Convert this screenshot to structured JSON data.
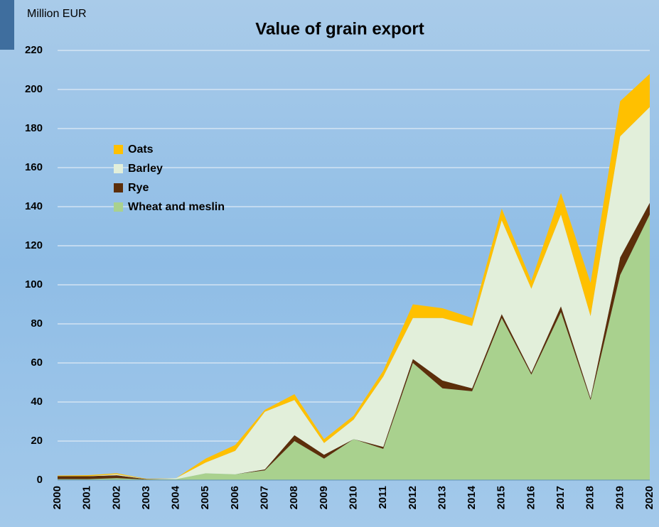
{
  "chart_data": {
    "type": "stacked-area",
    "title": "Value of grain export",
    "y_label": "Million EUR",
    "categories": [
      "2000",
      "2001",
      "2002",
      "2003",
      "2004",
      "2005",
      "2006",
      "2007",
      "2008",
      "2009",
      "2010",
      "2011",
      "2012",
      "2013",
      "2014",
      "2015",
      "2016",
      "2017",
      "2018",
      "2019",
      "2020"
    ],
    "series": [
      {
        "name": "Wheat and meslin",
        "color": "#a9d18e",
        "values": [
          0.5,
          0.5,
          1,
          0.3,
          0.5,
          3.5,
          3,
          5,
          20,
          11,
          21,
          16,
          60,
          47,
          45.5,
          83,
          54,
          86,
          41,
          105,
          136
        ]
      },
      {
        "name": "Rye",
        "color": "#5c2e0a",
        "values": [
          1.5,
          1.5,
          1.5,
          0.2,
          0,
          0,
          0,
          0.5,
          3,
          2,
          0,
          1,
          2,
          4,
          1.5,
          2,
          1,
          3,
          1,
          9,
          6
        ]
      },
      {
        "name": "Barley",
        "color": "#e2efda",
        "values": [
          0,
          0,
          0.5,
          0,
          0.5,
          5.5,
          12,
          29.5,
          18,
          6,
          10,
          36,
          21,
          32,
          32,
          48,
          43,
          47,
          42,
          62,
          49
        ]
      },
      {
        "name": "Oats",
        "color": "#ffc000",
        "values": [
          0.3,
          0.5,
          0.5,
          0.2,
          0,
          2,
          3,
          1,
          3,
          2,
          2,
          3,
          7,
          5,
          4,
          6,
          4,
          11,
          17,
          18,
          17
        ]
      }
    ],
    "ylim": [
      0,
      220
    ],
    "yticks": [
      0,
      20,
      40,
      60,
      80,
      100,
      120,
      140,
      160,
      180,
      200,
      220
    ],
    "grid": true
  }
}
